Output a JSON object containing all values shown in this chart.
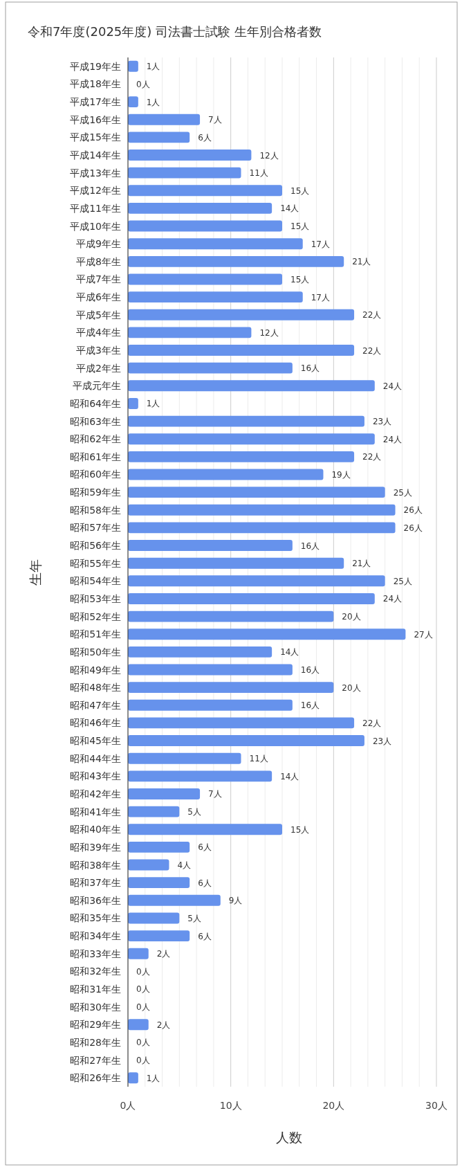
{
  "chart_data": {
    "type": "bar",
    "orientation": "horizontal",
    "title": "令和7年度(2025年度) 司法書士試験 生年別合格者数",
    "xlabel": "人数",
    "ylabel": "生年",
    "categories": [
      "平成19年生",
      "平成18年生",
      "平成17年生",
      "平成16年生",
      "平成15年生",
      "平成14年生",
      "平成13年生",
      "平成12年生",
      "平成11年生",
      "平成10年生",
      "平成9年生",
      "平成8年生",
      "平成7年生",
      "平成6年生",
      "平成5年生",
      "平成4年生",
      "平成3年生",
      "平成2年生",
      "平成元年生",
      "昭和64年生",
      "昭和63年生",
      "昭和62年生",
      "昭和61年生",
      "昭和60年生",
      "昭和59年生",
      "昭和58年生",
      "昭和57年生",
      "昭和56年生",
      "昭和55年生",
      "昭和54年生",
      "昭和53年生",
      "昭和52年生",
      "昭和51年生",
      "昭和50年生",
      "昭和49年生",
      "昭和48年生",
      "昭和47年生",
      "昭和46年生",
      "昭和45年生",
      "昭和44年生",
      "昭和43年生",
      "昭和42年生",
      "昭和41年生",
      "昭和40年生",
      "昭和39年生",
      "昭和38年生",
      "昭和37年生",
      "昭和36年生",
      "昭和35年生",
      "昭和34年生",
      "昭和33年生",
      "昭和32年生",
      "昭和31年生",
      "昭和30年生",
      "昭和29年生",
      "昭和28年生",
      "昭和27年生",
      "昭和26年生"
    ],
    "values": [
      1,
      0,
      1,
      7,
      6,
      12,
      11,
      15,
      14,
      15,
      17,
      21,
      15,
      17,
      22,
      12,
      22,
      16,
      24,
      1,
      23,
      24,
      22,
      19,
      25,
      26,
      26,
      16,
      21,
      25,
      24,
      20,
      27,
      14,
      16,
      20,
      16,
      22,
      23,
      11,
      14,
      7,
      5,
      15,
      6,
      4,
      6,
      9,
      5,
      6,
      2,
      0,
      0,
      0,
      2,
      0,
      0,
      1
    ],
    "value_labels": [
      "1人",
      "0人",
      "1人",
      "7人",
      "6人",
      "12人",
      "11人",
      "15人",
      "14人",
      "15人",
      "17人",
      "21人",
      "15人",
      "17人",
      "22人",
      "12人",
      "22人",
      "16人",
      "24人",
      "1人",
      "23人",
      "24人",
      "22人",
      "19人",
      "25人",
      "26人",
      "26人",
      "16人",
      "21人",
      "25人",
      "24人",
      "20人",
      "27人",
      "14人",
      "16人",
      "20人",
      "16人",
      "22人",
      "23人",
      "11人",
      "14人",
      "7人",
      "5人",
      "15人",
      "6人",
      "4人",
      "6人",
      "9人",
      "5人",
      "6人",
      "2人",
      "0人",
      "0人",
      "0人",
      "2人",
      "0人",
      "0人",
      "1人"
    ],
    "color": "#6692ec",
    "xlim": [
      0,
      30
    ],
    "xticks": [
      {
        "value": 0,
        "label": "0人"
      },
      {
        "value": 10,
        "label": "10人"
      },
      {
        "value": 20,
        "label": "20人"
      },
      {
        "value": 30,
        "label": "30人"
      }
    ],
    "grid": "x"
  }
}
